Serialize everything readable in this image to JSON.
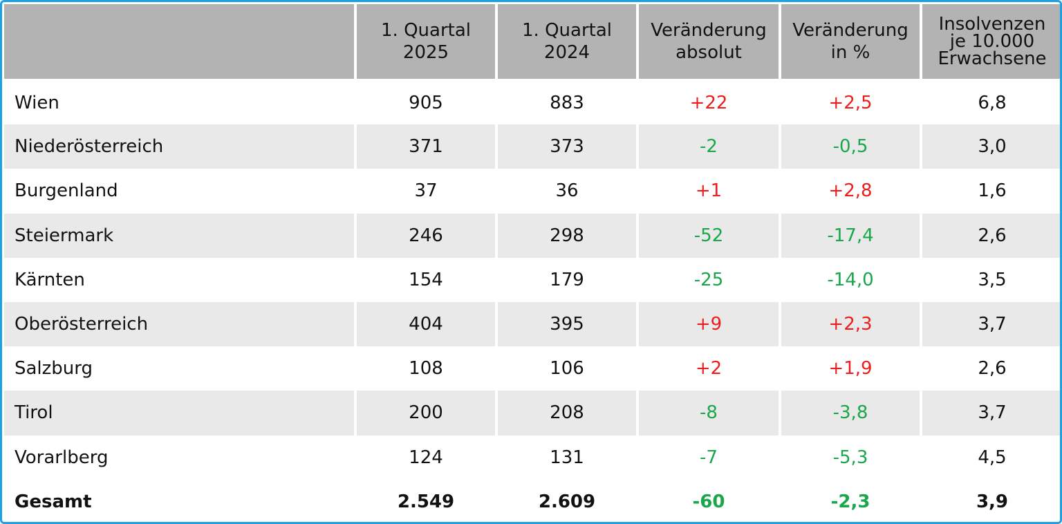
{
  "chart_data": {
    "type": "table",
    "columns": [
      "",
      "1. Quartal 2025",
      "1. Quartal 2024",
      "Veränderung absolut",
      "Veränderung in %",
      "Insolvenzen je 10.000 Erwachsene"
    ],
    "header_lines": [
      [],
      [
        "1. Quartal",
        "2025"
      ],
      [
        "1. Quartal",
        "2024"
      ],
      [
        "Veränderung",
        "absolut"
      ],
      [
        "Veränderung",
        "in %"
      ],
      [
        "Insolvenzen",
        "je 10.000",
        "Erwachsene"
      ]
    ],
    "rows": [
      {
        "region": "Wien",
        "q1_2025": "905",
        "q1_2024": "883",
        "change_abs": "+22",
        "change_pct": "+2,5",
        "per_10000": "6,8"
      },
      {
        "region": "Niederösterreich",
        "q1_2025": "371",
        "q1_2024": "373",
        "change_abs": "-2",
        "change_pct": "-0,5",
        "per_10000": "3,0"
      },
      {
        "region": "Burgenland",
        "q1_2025": "37",
        "q1_2024": "36",
        "change_abs": "+1",
        "change_pct": "+2,8",
        "per_10000": "1,6"
      },
      {
        "region": "Steiermark",
        "q1_2025": "246",
        "q1_2024": "298",
        "change_abs": "-52",
        "change_pct": "-17,4",
        "per_10000": "2,6"
      },
      {
        "region": "Kärnten",
        "q1_2025": "154",
        "q1_2024": "179",
        "change_abs": "-25",
        "change_pct": "-14,0",
        "per_10000": "3,5"
      },
      {
        "region": "Oberösterreich",
        "q1_2025": "404",
        "q1_2024": "395",
        "change_abs": "+9",
        "change_pct": "+2,3",
        "per_10000": "3,7"
      },
      {
        "region": "Salzburg",
        "q1_2025": "108",
        "q1_2024": "106",
        "change_abs": "+2",
        "change_pct": "+1,9",
        "per_10000": "2,6"
      },
      {
        "region": "Tirol",
        "q1_2025": "200",
        "q1_2024": "208",
        "change_abs": "-8",
        "change_pct": "-3,8",
        "per_10000": "3,7"
      },
      {
        "region": "Vorarlberg",
        "q1_2025": "124",
        "q1_2024": "131",
        "change_abs": "-7",
        "change_pct": "-5,3",
        "per_10000": "4,5"
      },
      {
        "region": "Gesamt",
        "q1_2025": "2.549",
        "q1_2024": "2.609",
        "change_abs": "-60",
        "change_pct": "-2,3",
        "per_10000": "3,9"
      }
    ],
    "colors": {
      "increase": "#ee1c1c",
      "decrease": "#1aa64a",
      "header_bg": "#b3b3b3",
      "alt_row_bg": "#e9e9e9",
      "frame": "#1ea0e6"
    }
  }
}
